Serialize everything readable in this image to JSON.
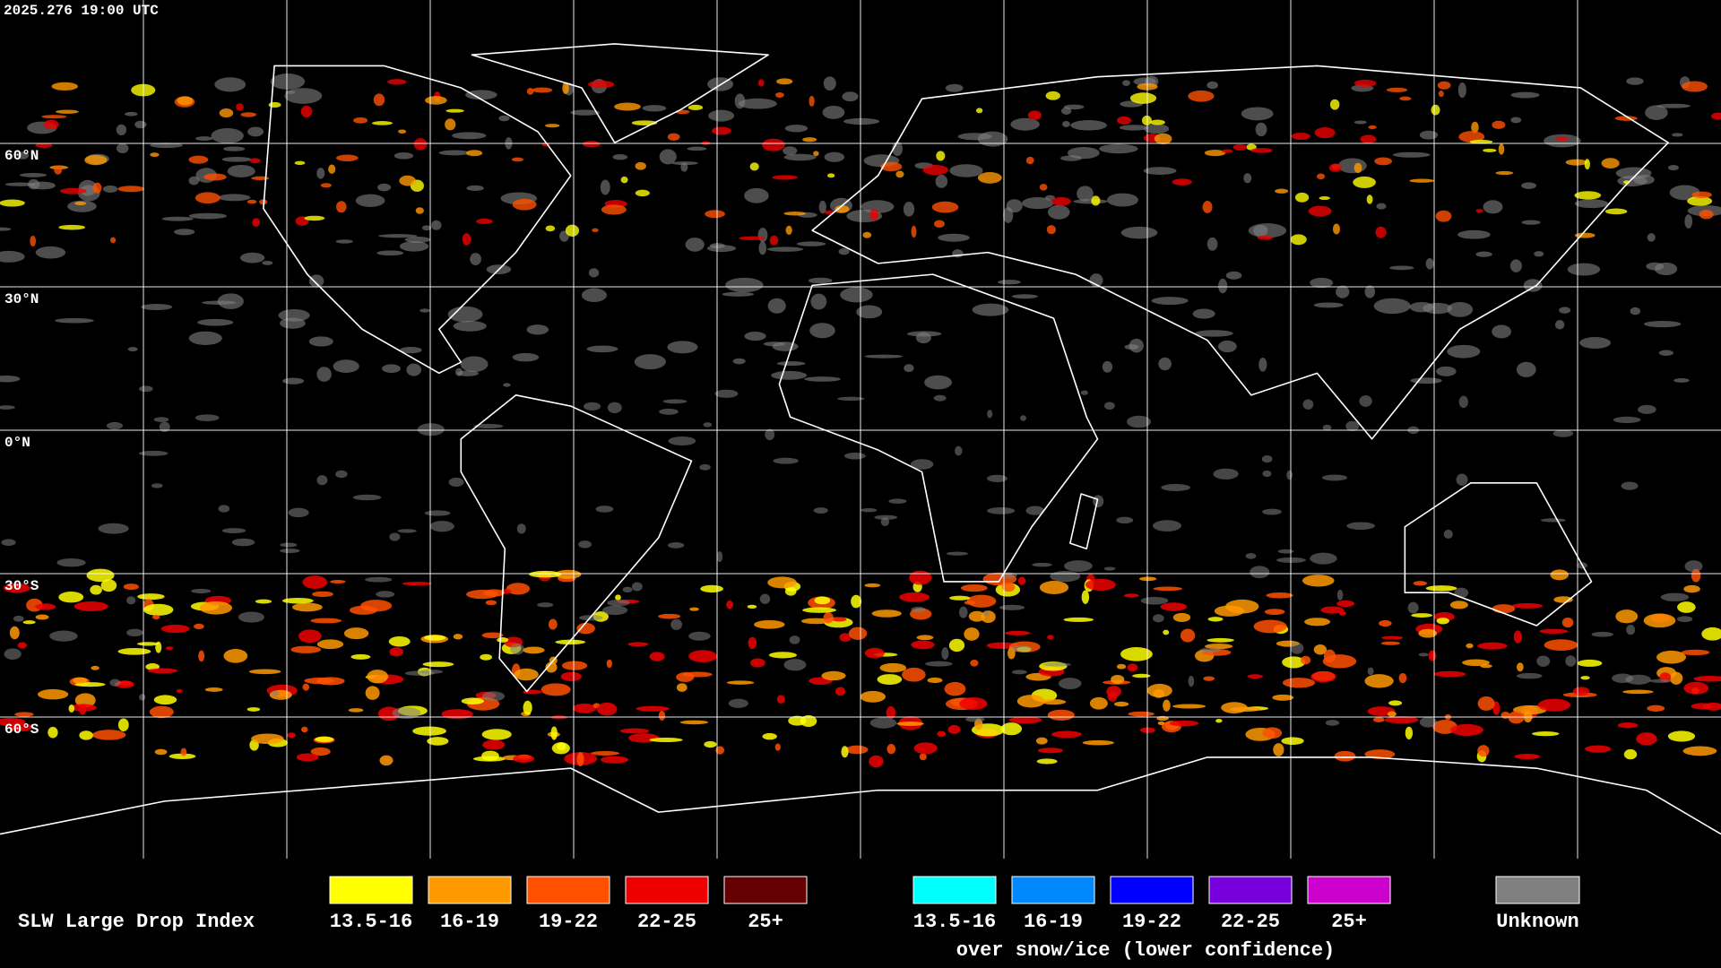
{
  "timestamp": "2025.276 19:00 UTC",
  "latitude_labels": [
    "60°N",
    "30°N",
    "0°N",
    "30°S",
    "60°S"
  ],
  "legend": {
    "title": "SLW Large Drop Index",
    "items": [
      {
        "label": "13.5-16",
        "color": "#ffff00"
      },
      {
        "label": "16-19",
        "color": "#ff9900"
      },
      {
        "label": "19-22",
        "color": "#ff5000"
      },
      {
        "label": "22-25",
        "color": "#ee0000"
      },
      {
        "label": "25+",
        "color": "#660000"
      }
    ],
    "snow_ice": {
      "items": [
        {
          "label": "13.5-16",
          "color": "#00ffff"
        },
        {
          "label": "16-19",
          "color": "#0088ff"
        },
        {
          "label": "19-22",
          "color": "#0000ff"
        },
        {
          "label": "22-25",
          "color": "#7700dd"
        },
        {
          "label": "25+",
          "color": "#cc00cc"
        }
      ],
      "caption": "over snow/ice (lower confidence)"
    },
    "unknown": {
      "label": "Unknown",
      "color": "#808080"
    }
  }
}
